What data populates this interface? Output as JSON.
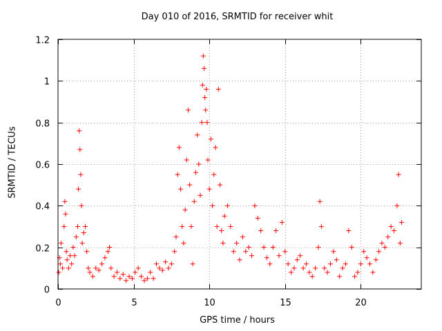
{
  "chart_data": {
    "type": "scatter",
    "title": "Day 010 of 2016, SRMTID for receiver whit",
    "xlabel": "GPS time / hours",
    "ylabel": "SRMTID / TECUs",
    "xlim": [
      0,
      24
    ],
    "ylim": [
      0,
      1.2
    ],
    "xticks": [
      0,
      5,
      10,
      15,
      20
    ],
    "xtick_labels": [
      "0",
      "5",
      "10",
      "15",
      "20"
    ],
    "yticks": [
      0,
      0.2,
      0.4,
      0.6,
      0.8,
      1.0,
      1.2
    ],
    "ytick_labels": [
      "0",
      "0.2",
      "0.4",
      "0.6",
      "0.8",
      "1",
      "1.2"
    ],
    "grid": true,
    "marker": "+",
    "color": "#ff0000",
    "series": [
      {
        "name": "SRMTID",
        "x": [
          0.05,
          0.1,
          0.15,
          0.2,
          0.3,
          0.4,
          0.45,
          0.5,
          0.55,
          0.6,
          0.7,
          0.8,
          0.9,
          1.0,
          1.1,
          1.2,
          1.3,
          1.35,
          1.4,
          1.45,
          1.5,
          1.55,
          1.6,
          1.7,
          1.8,
          1.9,
          2.0,
          2.1,
          2.3,
          2.5,
          2.7,
          2.9,
          3.1,
          3.3,
          3.4,
          3.5,
          3.7,
          3.9,
          4.1,
          4.3,
          4.5,
          4.7,
          4.9,
          5.1,
          5.3,
          5.5,
          5.7,
          5.9,
          6.1,
          6.3,
          6.5,
          6.7,
          6.9,
          7.1,
          7.3,
          7.5,
          7.7,
          7.8,
          7.9,
          8.0,
          8.1,
          8.2,
          8.3,
          8.4,
          8.5,
          8.6,
          8.7,
          8.8,
          8.9,
          9.0,
          9.1,
          9.2,
          9.3,
          9.4,
          9.5,
          9.55,
          9.6,
          9.65,
          9.7,
          9.75,
          9.8,
          9.85,
          9.9,
          10.0,
          10.1,
          10.2,
          10.3,
          10.4,
          10.5,
          10.6,
          10.7,
          10.8,
          10.9,
          11.0,
          11.2,
          11.4,
          11.6,
          11.8,
          12.0,
          12.2,
          12.4,
          12.6,
          12.8,
          13.0,
          13.2,
          13.4,
          13.6,
          13.8,
          14.0,
          14.2,
          14.4,
          14.6,
          14.8,
          15.0,
          15.2,
          15.4,
          15.6,
          15.8,
          16.0,
          16.2,
          16.4,
          16.6,
          16.8,
          17.0,
          17.2,
          17.3,
          17.4,
          17.6,
          17.8,
          18.0,
          18.2,
          18.4,
          18.6,
          18.8,
          19.0,
          19.2,
          19.4,
          19.6,
          19.8,
          20.0,
          20.2,
          20.4,
          20.6,
          20.8,
          21.0,
          21.2,
          21.4,
          21.6,
          21.8,
          22.0,
          22.2,
          22.4,
          22.5,
          22.6,
          22.7
        ],
        "y": [
          0.08,
          0.15,
          0.12,
          0.22,
          0.1,
          0.3,
          0.42,
          0.36,
          0.18,
          0.14,
          0.1,
          0.16,
          0.12,
          0.2,
          0.16,
          0.25,
          0.3,
          0.48,
          0.76,
          0.67,
          0.55,
          0.4,
          0.22,
          0.27,
          0.3,
          0.18,
          0.1,
          0.08,
          0.06,
          0.1,
          0.09,
          0.12,
          0.15,
          0.18,
          0.2,
          0.1,
          0.06,
          0.08,
          0.05,
          0.07,
          0.04,
          0.06,
          0.05,
          0.08,
          0.1,
          0.06,
          0.04,
          0.05,
          0.08,
          0.05,
          0.12,
          0.1,
          0.09,
          0.13,
          0.1,
          0.12,
          0.18,
          0.25,
          0.55,
          0.68,
          0.48,
          0.3,
          0.22,
          0.38,
          0.62,
          0.86,
          0.5,
          0.3,
          0.12,
          0.42,
          0.56,
          0.74,
          0.6,
          0.45,
          0.8,
          0.98,
          1.12,
          1.06,
          0.92,
          0.86,
          0.96,
          0.8,
          0.62,
          0.48,
          0.72,
          0.4,
          0.55,
          0.68,
          0.3,
          0.96,
          0.5,
          0.28,
          0.22,
          0.35,
          0.4,
          0.3,
          0.18,
          0.22,
          0.14,
          0.25,
          0.18,
          0.2,
          0.16,
          0.4,
          0.34,
          0.28,
          0.2,
          0.15,
          0.12,
          0.2,
          0.28,
          0.16,
          0.32,
          0.18,
          0.12,
          0.08,
          0.1,
          0.14,
          0.16,
          0.1,
          0.12,
          0.08,
          0.06,
          0.1,
          0.2,
          0.42,
          0.3,
          0.1,
          0.08,
          0.12,
          0.18,
          0.14,
          0.06,
          0.1,
          0.12,
          0.28,
          0.2,
          0.06,
          0.08,
          0.12,
          0.18,
          0.15,
          0.12,
          0.08,
          0.14,
          0.18,
          0.22,
          0.2,
          0.25,
          0.3,
          0.28,
          0.4,
          0.55,
          0.22,
          0.32
        ]
      }
    ]
  }
}
